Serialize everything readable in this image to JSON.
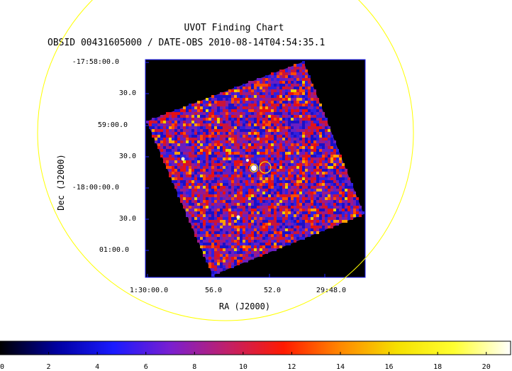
{
  "chart_data": {
    "type": "heatmap",
    "title": "UVOT Finding Chart",
    "subtitle": "OBSID 00431605000 / DATE-OBS 2010-08-14T04:54:35.1",
    "xlabel": "RA (J2000)",
    "ylabel": "Dec (J2000)",
    "x_ticks": [
      "1:30:00.0",
      "56.0",
      "52.0",
      "29:48.0"
    ],
    "y_ticks": [
      "-17:58:00.0",
      "30.0",
      "59:00.0",
      "30.0",
      "-18:00:00.0",
      "30.0",
      "01:00.0"
    ],
    "colorbar": {
      "min": 0,
      "max": 21,
      "ticks": [
        "0",
        "2",
        "4",
        "6",
        "8",
        "10",
        "12",
        "14",
        "16",
        "18",
        "20"
      ],
      "colormap": [
        "#000000",
        "#0000a0",
        "#1a1aff",
        "#7a1fd0",
        "#c0206a",
        "#ff1a00",
        "#ff8800",
        "#f5e000",
        "#ffff30",
        "#ffffff"
      ]
    },
    "image_rotation_deg": 18,
    "marker_color": "#ffff00",
    "circle_color": "#ffff00",
    "frame_color": "#2020ff"
  }
}
